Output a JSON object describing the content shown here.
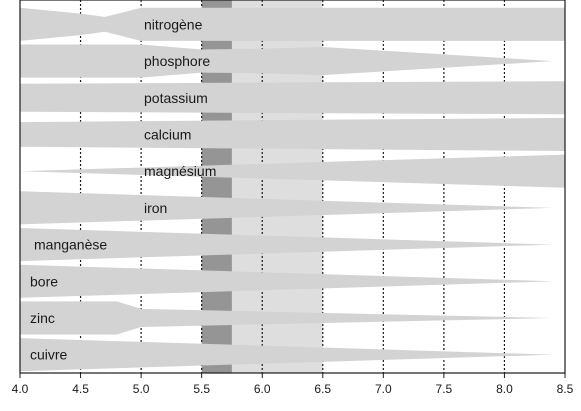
{
  "chart_data": {
    "type": "area",
    "title": "",
    "xlabel": "",
    "ylabel": "",
    "xlim": [
      4.0,
      8.5
    ],
    "grid": "dotted vertical lines",
    "x_ticks": [
      "4.0",
      "4.5",
      "5.0",
      "5.5",
      "6.0",
      "6.5",
      "7.0",
      "7.5",
      "8.0",
      "8.5"
    ],
    "bands": [
      {
        "name": "",
        "x": [
          5.5,
          5.75
        ],
        "color": "#959595"
      },
      {
        "name": "",
        "x": [
          5.75,
          6.5
        ],
        "color": "#dedede"
      }
    ],
    "series": [
      {
        "name": "nitrogène",
        "x": [
          4.0,
          4.5,
          4.7,
          5.0,
          8.5
        ],
        "thickness": [
          1.0,
          0.65,
          0.45,
          1.0,
          1.0
        ]
      },
      {
        "name": "phosphore",
        "x": [
          4.0,
          5.0,
          5.5,
          6.0,
          6.5,
          7.5,
          8.4
        ],
        "thickness": [
          1.0,
          1.0,
          0.7,
          0.75,
          0.85,
          0.4,
          0.0
        ]
      },
      {
        "name": "potassium",
        "x": [
          4.0,
          8.5
        ],
        "thickness": [
          0.85,
          1.0
        ]
      },
      {
        "name": "calcium",
        "x": [
          4.0,
          8.5
        ],
        "thickness": [
          0.75,
          1.0
        ]
      },
      {
        "name": "magnésium",
        "x": [
          4.0,
          8.5
        ],
        "thickness": [
          0.0,
          1.0
        ]
      },
      {
        "name": "iron",
        "x": [
          4.0,
          8.4
        ],
        "thickness": [
          1.0,
          0.0
        ]
      },
      {
        "name": "manganèse",
        "x": [
          4.0,
          8.4
        ],
        "thickness": [
          1.0,
          0.0
        ]
      },
      {
        "name": "bore",
        "x": [
          4.0,
          8.4
        ],
        "thickness": [
          1.0,
          0.0
        ]
      },
      {
        "name": "zinc",
        "x": [
          4.0,
          4.8,
          5.0,
          8.4
        ],
        "thickness": [
          1.0,
          1.0,
          0.55,
          0.0
        ]
      },
      {
        "name": "cuivre",
        "x": [
          4.0,
          8.4
        ],
        "thickness": [
          1.0,
          0.0
        ]
      }
    ]
  },
  "style": {
    "band_color": "#d3d3d3",
    "text_color": "#1a1a1a",
    "grid_color": "#1a1a1a"
  }
}
